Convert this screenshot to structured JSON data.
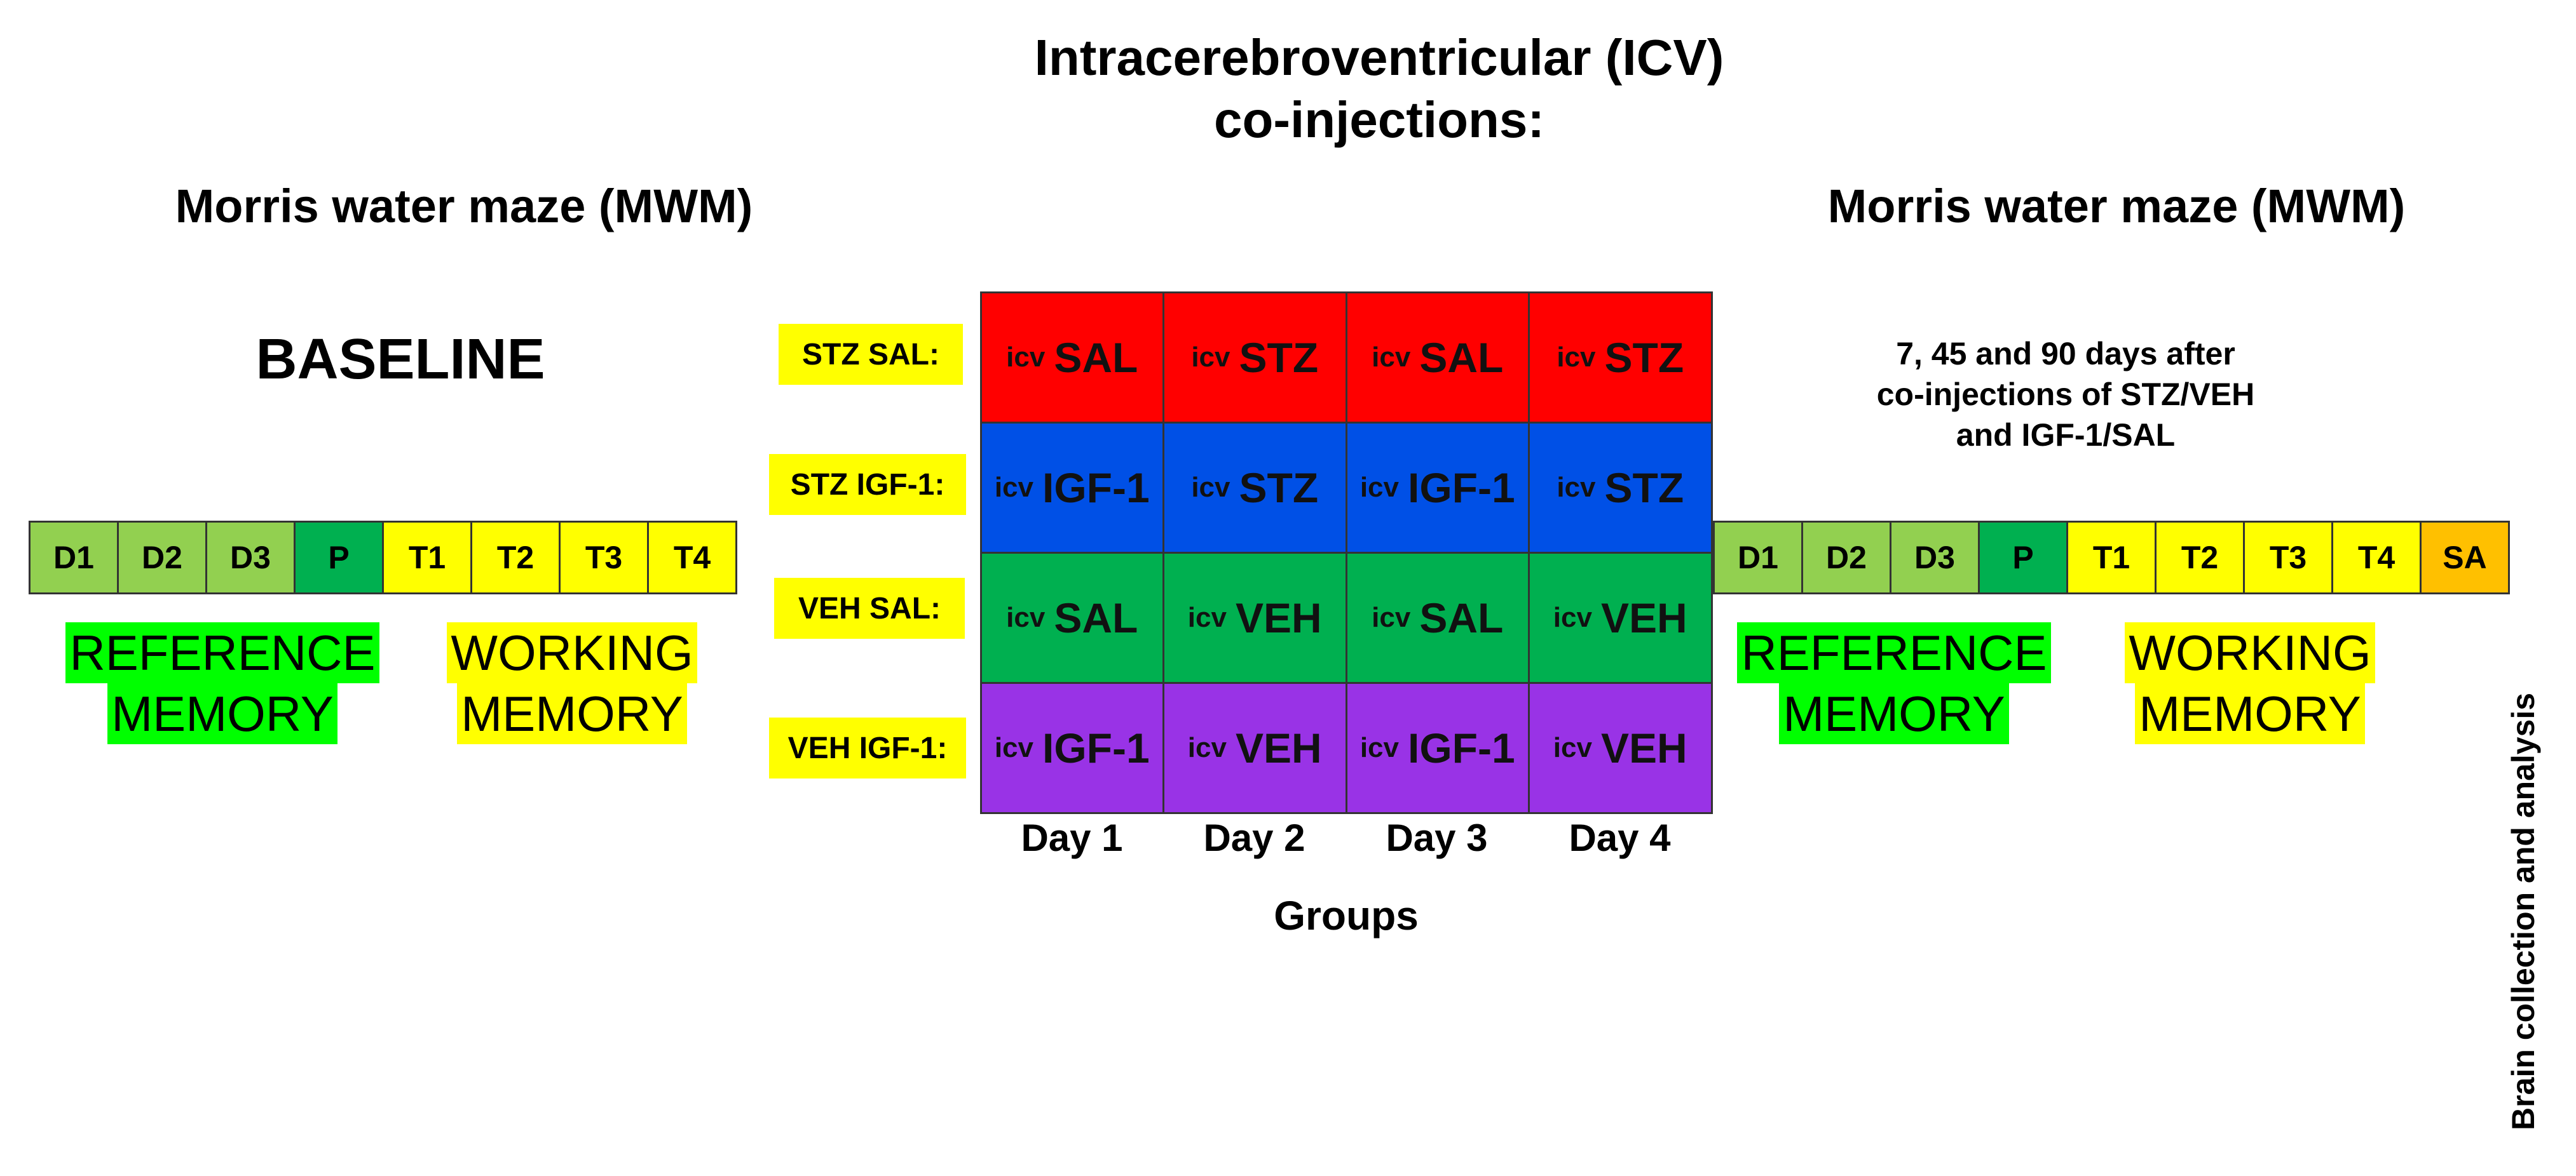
{
  "header": {
    "title_line1": "Intracerebroventricular (ICV)",
    "title_line2": "co-injections:",
    "left_heading": "Morris water maze (MWM)",
    "right_heading": "Morris water maze (MWM)"
  },
  "baseline_label": "BASELINE",
  "after_note": {
    "line1": "7, 45 and 90 days after",
    "line2": "co-injections of STZ/VEH",
    "line3": "and IGF-1/SAL"
  },
  "left_strip": [
    "D1",
    "D2",
    "D3",
    "P",
    "T1",
    "T2",
    "T3",
    "T4"
  ],
  "right_strip": [
    "D1",
    "D2",
    "D3",
    "P",
    "T1",
    "T2",
    "T3",
    "T4",
    "SA"
  ],
  "memory_labels": {
    "reference_line1": "REFERENCE",
    "reference_line2": "MEMORY",
    "working_line1": "WORKING",
    "working_line2": "MEMORY"
  },
  "groups": [
    {
      "label": "STZ SAL:",
      "cells": [
        "SAL",
        "STZ",
        "SAL",
        "STZ"
      ]
    },
    {
      "label": "STZ IGF-1:",
      "cells": [
        "IGF-1",
        "STZ",
        "IGF-1",
        "STZ"
      ]
    },
    {
      "label": "VEH SAL:",
      "cells": [
        "SAL",
        "VEH",
        "SAL",
        "VEH"
      ]
    },
    {
      "label": "VEH IGF-1:",
      "cells": [
        "IGF-1",
        "VEH",
        "IGF-1",
        "VEH"
      ]
    }
  ],
  "icv_prefix": "icv",
  "days": [
    "Day 1",
    "Day 2",
    "Day 3",
    "Day 4"
  ],
  "groups_axis_label": "Groups",
  "vertical_note": "Brain collection and  analysis",
  "colors": {
    "light_green": "#92D050",
    "dark_green": "#00B050",
    "yellow": "#FFFF00",
    "orange": "#FFC000",
    "highlight_green": "#00FF00",
    "row_red": "#FF0000",
    "row_blue": "#0050E6",
    "row_green": "#00B050",
    "row_purple": "#9933E6"
  }
}
